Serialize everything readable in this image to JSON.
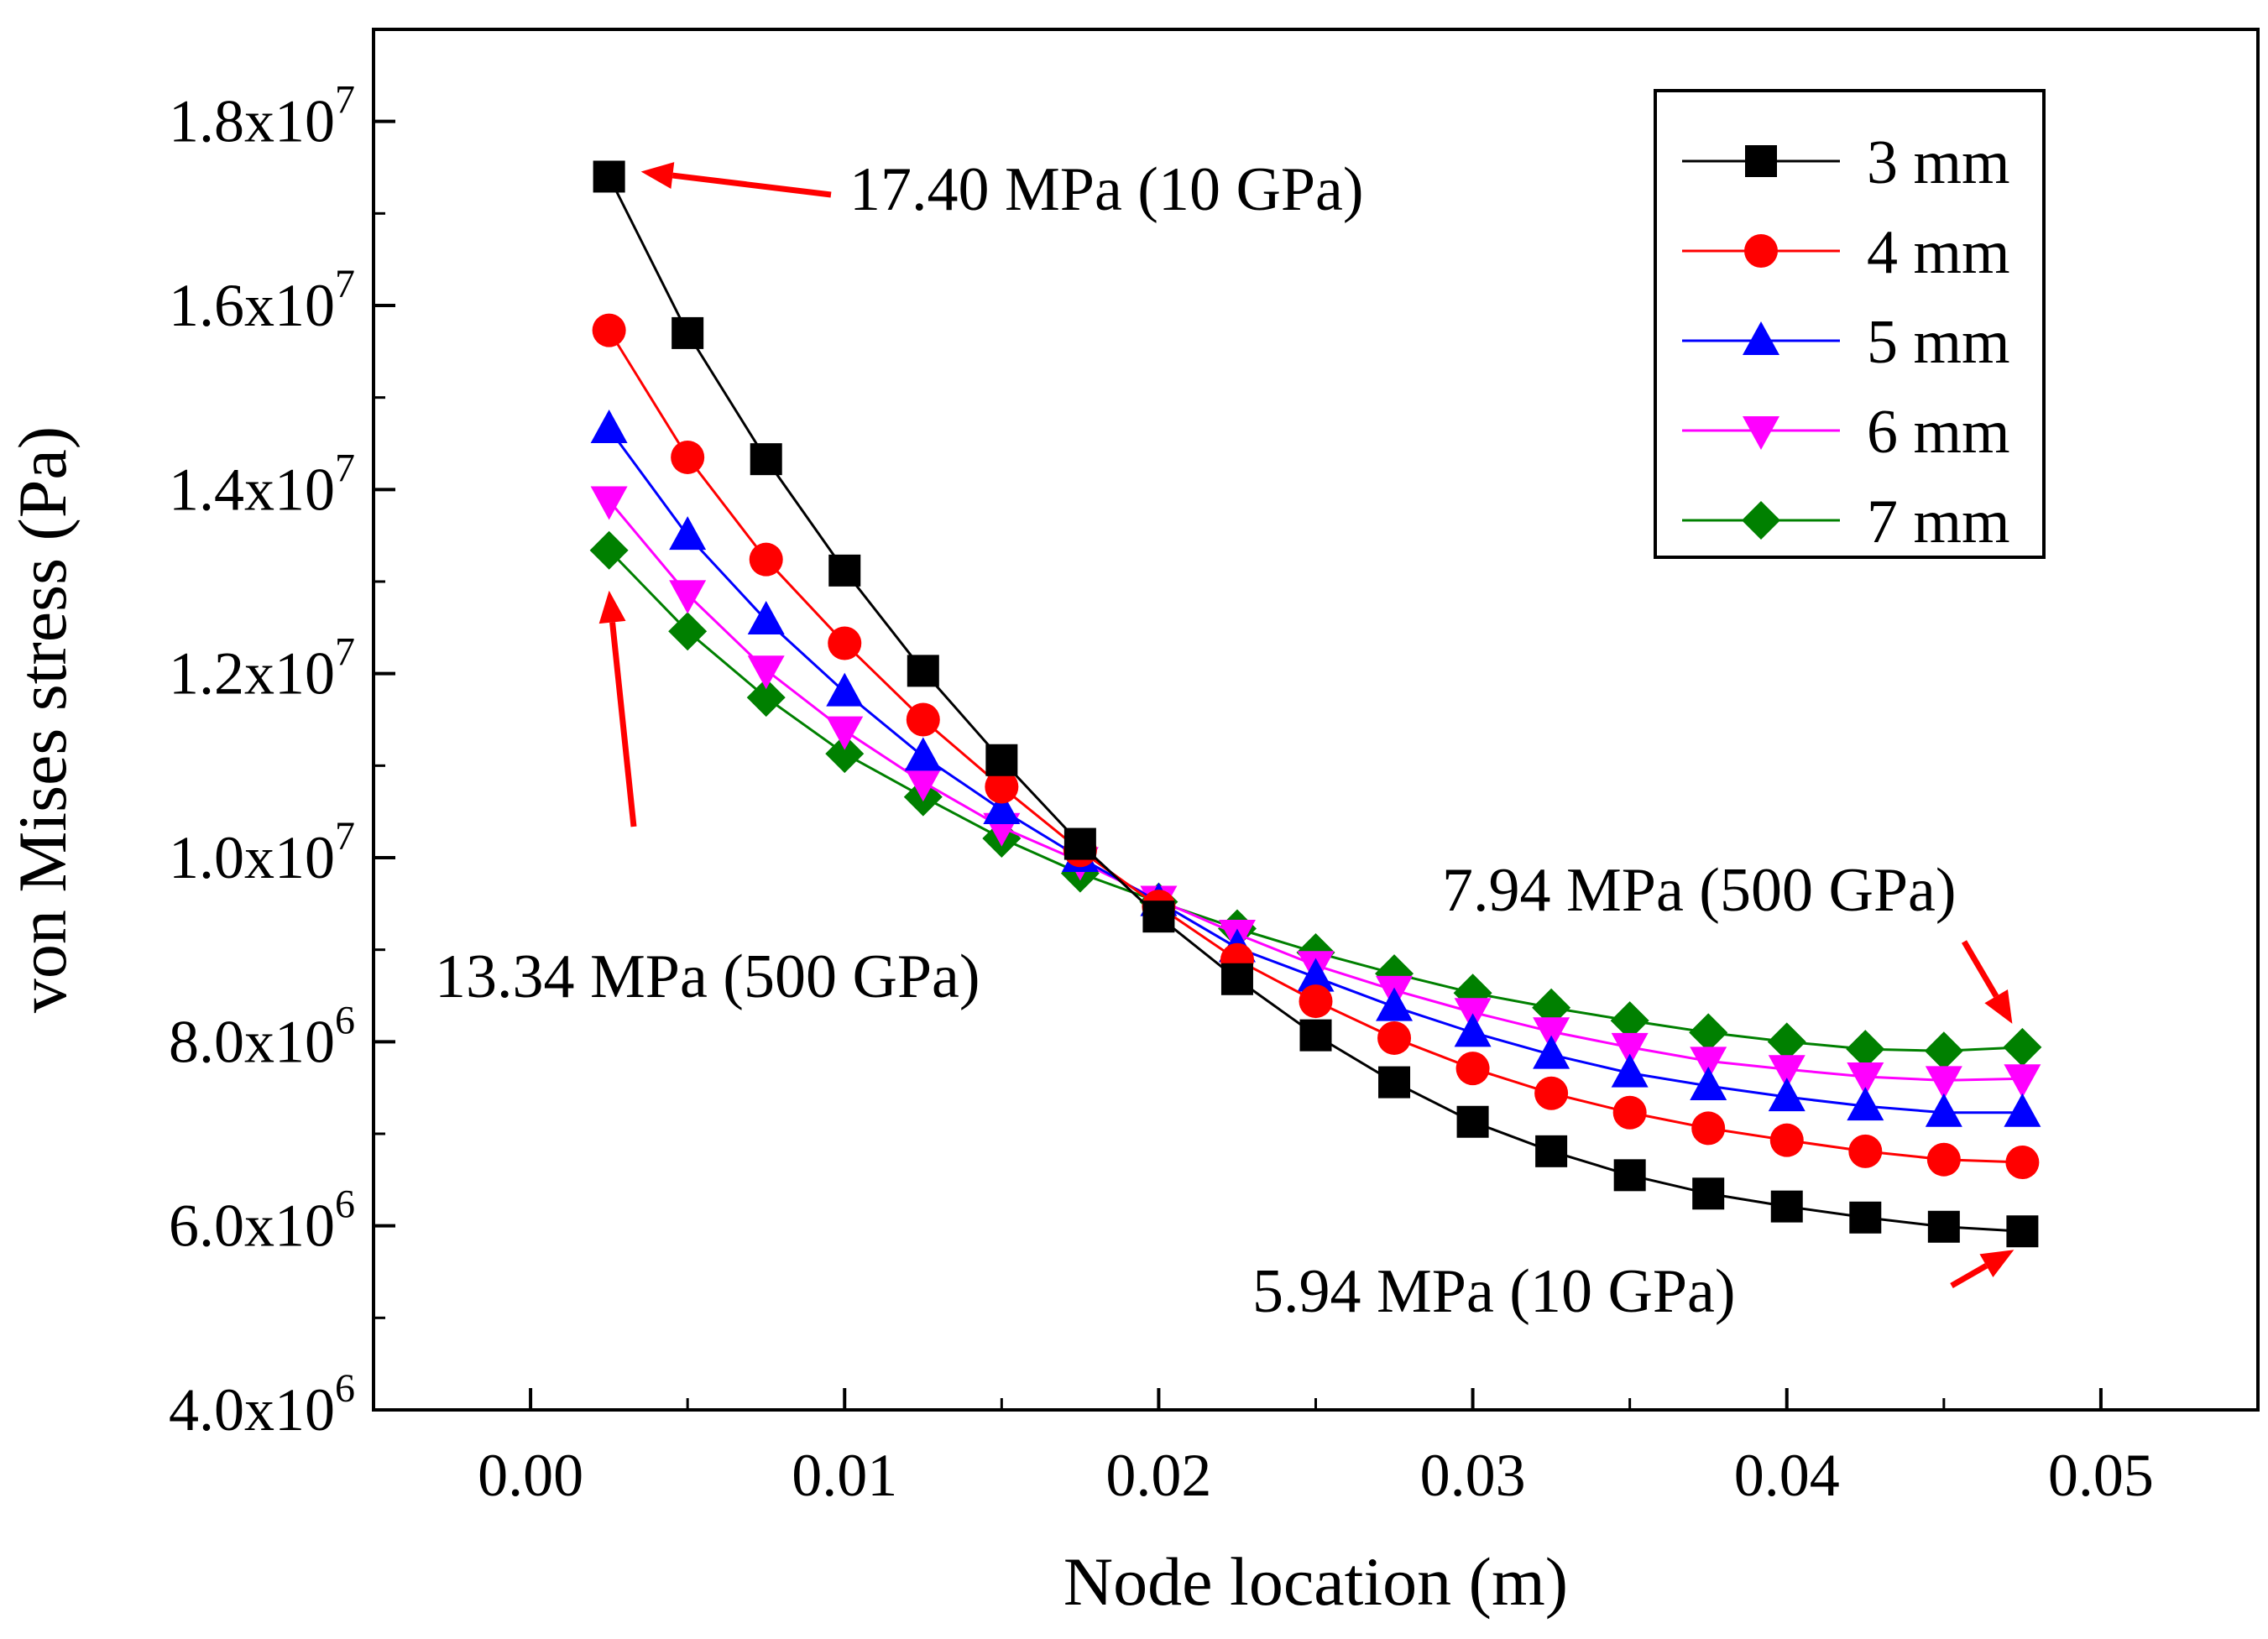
{
  "chart_data": {
    "type": "line",
    "title": "",
    "xlabel": "Node location (m)",
    "ylabel": "von Mises stress (Pa)",
    "xlim": [
      -0.005,
      0.055
    ],
    "ylim": [
      4000000,
      19000000
    ],
    "grid": false,
    "legend_position": "top-right",
    "x_ticks": [
      {
        "value": 0.0,
        "label": "0.00"
      },
      {
        "value": 0.01,
        "label": "0.01"
      },
      {
        "value": 0.02,
        "label": "0.02"
      },
      {
        "value": 0.03,
        "label": "0.03"
      },
      {
        "value": 0.04,
        "label": "0.04"
      },
      {
        "value": 0.05,
        "label": "0.05"
      }
    ],
    "y_ticks": [
      {
        "value": 4000000,
        "mantissa": "4.0x10",
        "exponent": "6"
      },
      {
        "value": 6000000,
        "mantissa": "6.0x10",
        "exponent": "6"
      },
      {
        "value": 8000000,
        "mantissa": "8.0x10",
        "exponent": "6"
      },
      {
        "value": 10000000,
        "mantissa": "1.0x10",
        "exponent": "7"
      },
      {
        "value": 12000000,
        "mantissa": "1.2x10",
        "exponent": "7"
      },
      {
        "value": 14000000,
        "mantissa": "1.4x10",
        "exponent": "7"
      },
      {
        "value": 16000000,
        "mantissa": "1.6x10",
        "exponent": "7"
      },
      {
        "value": 18000000,
        "mantissa": "1.8x10",
        "exponent": "7"
      }
    ],
    "x": [
      0.0025,
      0.005,
      0.0075,
      0.01,
      0.0125,
      0.015,
      0.0175,
      0.02,
      0.0225,
      0.025,
      0.0275,
      0.03,
      0.0325,
      0.035,
      0.0375,
      0.04,
      0.0425,
      0.045,
      0.0475
    ],
    "series": [
      {
        "name": "3 mm",
        "color": "#000000",
        "marker": "square",
        "values": [
          17400000,
          15700000,
          14330000,
          13120000,
          12030000,
          11060000,
          10150000,
          9360000,
          8680000,
          8070000,
          7560000,
          7130000,
          6810000,
          6550000,
          6350000,
          6210000,
          6090000,
          5990000,
          5940000
        ]
      },
      {
        "name": "4 mm",
        "color": "#ff0000",
        "marker": "circle",
        "values": [
          15730000,
          14350000,
          13240000,
          12330000,
          11500000,
          10770000,
          10080000,
          9470000,
          8890000,
          8440000,
          8040000,
          7710000,
          7440000,
          7230000,
          7060000,
          6930000,
          6810000,
          6720000,
          6690000
        ]
      },
      {
        "name": "5 mm",
        "color": "#0000ff",
        "marker": "triangle-up",
        "values": [
          14660000,
          13500000,
          12580000,
          11800000,
          11100000,
          10520000,
          10000000,
          9520000,
          9020000,
          8700000,
          8380000,
          8100000,
          7860000,
          7660000,
          7520000,
          7400000,
          7300000,
          7230000,
          7230000
        ]
      },
      {
        "name": "6 mm",
        "color": "#ff00ff",
        "marker": "triangle-down",
        "values": [
          13880000,
          12860000,
          12040000,
          11380000,
          10820000,
          10330000,
          9960000,
          9540000,
          9170000,
          8830000,
          8560000,
          8320000,
          8110000,
          7940000,
          7790000,
          7700000,
          7620000,
          7580000,
          7600000
        ]
      },
      {
        "name": "7 mm",
        "color": "#008000",
        "marker": "diamond",
        "values": [
          13340000,
          12460000,
          11740000,
          11130000,
          10660000,
          10210000,
          9830000,
          9520000,
          9230000,
          8970000,
          8740000,
          8530000,
          8370000,
          8230000,
          8100000,
          8000000,
          7920000,
          7900000,
          7940000
        ]
      }
    ],
    "annotations": [
      {
        "id": "a1",
        "text": "17.40 MPa (10 GPa)"
      },
      {
        "id": "a2",
        "text": "13.34 MPa (500 GPa)"
      },
      {
        "id": "a3",
        "text": "7.94 MPa (500 GPa)"
      },
      {
        "id": "a4",
        "text": "5.94 MPa (10 GPa)"
      }
    ],
    "annotation_color": "#ff0000"
  }
}
